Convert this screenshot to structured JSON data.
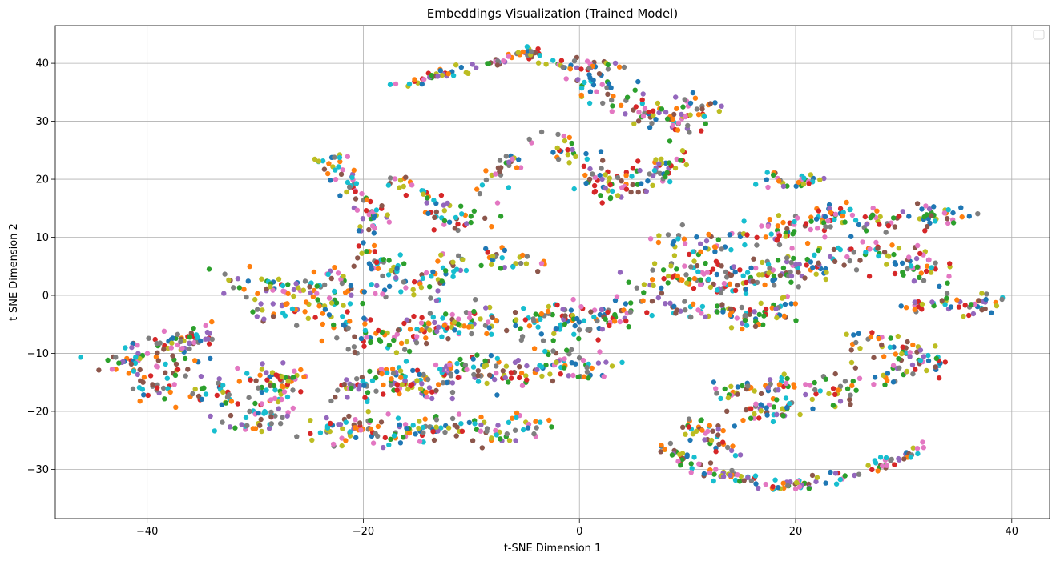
{
  "chart_data": {
    "type": "scatter",
    "title": "Embeddings Visualization (Trained Model)",
    "xlabel": "t-SNE Dimension 1",
    "ylabel": "t-SNE Dimension 2",
    "xlim": [
      -48.5,
      43.5
    ],
    "ylim": [
      -38.5,
      46.5
    ],
    "xticks": [
      -40,
      -20,
      0,
      20,
      40
    ],
    "yticks": [
      -30,
      -20,
      -10,
      0,
      10,
      20,
      30,
      40
    ],
    "grid": true,
    "legend": {
      "placement": "upper-right",
      "entries": []
    },
    "palette": [
      "#1f77b4",
      "#ff7f0e",
      "#2ca02c",
      "#d62728",
      "#9467bd",
      "#8c564b",
      "#e377c2",
      "#7f7f7f",
      "#bcbd22",
      "#17becf"
    ],
    "clusters": [
      {
        "points": [
          [
            -17.5,
            36.2
          ],
          [
            -14.0,
            37.5
          ],
          [
            -11.0,
            38.8
          ],
          [
            -8.0,
            40.2
          ],
          [
            -5.0,
            41.5
          ],
          [
            -3.5,
            42.3
          ]
        ],
        "spread": 0.8,
        "count": 70
      },
      {
        "points": [
          [
            -3.0,
            40.0
          ],
          [
            0.0,
            39.5
          ],
          [
            3.0,
            40.0
          ]
        ],
        "spread": 1.0,
        "count": 30
      },
      {
        "points": [
          [
            0.0,
            38.0
          ],
          [
            3.0,
            34.0
          ],
          [
            6.0,
            32.0
          ],
          [
            9.0,
            30.0
          ],
          [
            12.0,
            33.0
          ]
        ],
        "spread": 2.2,
        "count": 110
      },
      {
        "points": [
          [
            -3.0,
            28.0
          ],
          [
            0.0,
            22.0
          ],
          [
            3.0,
            18.0
          ],
          [
            6.0,
            20.0
          ],
          [
            9.0,
            24.0
          ]
        ],
        "spread": 2.2,
        "count": 110
      },
      {
        "points": [
          [
            -23.0,
            24.0
          ],
          [
            -22.0,
            20.0
          ],
          [
            -21.0,
            18.0
          ],
          [
            -19.0,
            14.0
          ],
          [
            -20.0,
            10.0
          ]
        ],
        "spread": 1.5,
        "count": 70
      },
      {
        "points": [
          [
            -17.0,
            20.0
          ],
          [
            -15.0,
            18.0
          ],
          [
            -13.0,
            15.0
          ],
          [
            -11.0,
            12.0
          ]
        ],
        "spread": 1.7,
        "count": 50
      },
      {
        "points": [
          [
            -10.0,
            16.0
          ],
          [
            -8.0,
            21.0
          ],
          [
            -6.0,
            23.5
          ],
          [
            -9.0,
            11.0
          ]
        ],
        "spread": 1.3,
        "count": 30
      },
      {
        "points": [
          [
            -20.0,
            8.0
          ],
          [
            -18.0,
            4.0
          ],
          [
            -15.0,
            0.5
          ],
          [
            -12.0,
            5.0
          ],
          [
            -8.0,
            7.0
          ],
          [
            -4.0,
            5.0
          ]
        ],
        "spread": 2.0,
        "count": 110
      },
      {
        "points": [
          [
            -32.0,
            2.0
          ],
          [
            -28.0,
            1.0
          ],
          [
            -24.0,
            3.0
          ],
          [
            -20.0,
            0.0
          ],
          [
            -26.0,
            -3.0
          ],
          [
            -30.0,
            -2.0
          ]
        ],
        "spread": 2.2,
        "count": 120
      },
      {
        "points": [
          [
            -43.0,
            -12.0
          ],
          [
            -40.0,
            -10.0
          ],
          [
            -37.0,
            -8.0
          ],
          [
            -34.0,
            -6.0
          ],
          [
            -38.0,
            -15.0
          ],
          [
            -41.0,
            -17.0
          ]
        ],
        "spread": 2.0,
        "count": 130
      },
      {
        "points": [
          [
            -35.0,
            -18.0
          ],
          [
            -31.0,
            -15.0
          ],
          [
            -27.0,
            -13.0
          ],
          [
            -28.0,
            -20.0
          ],
          [
            -32.0,
            -22.0
          ]
        ],
        "spread": 2.2,
        "count": 130
      },
      {
        "points": [
          [
            -22.0,
            -5.0
          ],
          [
            -18.0,
            -8.0
          ],
          [
            -14.0,
            -6.0
          ],
          [
            -10.0,
            -4.0
          ],
          [
            -6.0,
            -6.0
          ],
          [
            -2.0,
            -3.0
          ],
          [
            2.0,
            -5.0
          ],
          [
            5.0,
            -2.0
          ]
        ],
        "spread": 2.4,
        "count": 230
      },
      {
        "points": [
          [
            -22.0,
            -17.0
          ],
          [
            -18.0,
            -14.0
          ],
          [
            -14.0,
            -16.0
          ],
          [
            -10.0,
            -12.0
          ],
          [
            -6.0,
            -14.0
          ],
          [
            -2.0,
            -11.0
          ],
          [
            2.0,
            -13.0
          ]
        ],
        "spread": 2.4,
        "count": 230
      },
      {
        "points": [
          [
            -24.0,
            -24.0
          ],
          [
            -20.0,
            -22.0
          ],
          [
            -16.0,
            -24.0
          ],
          [
            -12.0,
            -22.0
          ],
          [
            -8.0,
            -24.0
          ],
          [
            -4.0,
            -21.0
          ]
        ],
        "spread": 2.2,
        "count": 150
      },
      {
        "points": [
          [
            6.0,
            2.0
          ],
          [
            10.0,
            4.0
          ],
          [
            14.0,
            2.0
          ],
          [
            18.0,
            4.0
          ],
          [
            22.0,
            6.0
          ],
          [
            26.0,
            8.0
          ],
          [
            30.0,
            6.0
          ],
          [
            34.0,
            4.0
          ]
        ],
        "spread": 2.4,
        "count": 230
      },
      {
        "points": [
          [
            8.0,
            -3.0
          ],
          [
            12.0,
            -2.0
          ],
          [
            16.0,
            -4.0
          ],
          [
            20.0,
            -2.0
          ]
        ],
        "spread": 1.8,
        "count": 80
      },
      {
        "points": [
          [
            8.0,
            10.0
          ],
          [
            12.0,
            8.0
          ],
          [
            16.0,
            10.0
          ],
          [
            20.0,
            12.0
          ],
          [
            24.0,
            14.0
          ],
          [
            28.0,
            13.0
          ],
          [
            32.0,
            14.0
          ],
          [
            35.0,
            14.0
          ]
        ],
        "spread": 2.0,
        "count": 170
      },
      {
        "points": [
          [
            17.0,
            20.5
          ],
          [
            20.0,
            20.0
          ],
          [
            22.0,
            19.5
          ],
          [
            16.0,
            19.0
          ]
        ],
        "spread": 1.0,
        "count": 30
      },
      {
        "points": [
          [
            30.0,
            -2.0
          ],
          [
            33.0,
            -1.0
          ],
          [
            36.0,
            -2.0
          ],
          [
            38.5,
            -0.8
          ]
        ],
        "spread": 1.3,
        "count": 50
      },
      {
        "points": [
          [
            26.0,
            -8.0
          ],
          [
            29.0,
            -9.0
          ],
          [
            31.0,
            -10.0
          ],
          [
            33.0,
            -12.0
          ],
          [
            30.0,
            -13.0
          ],
          [
            26.0,
            -15.0
          ]
        ],
        "spread": 1.8,
        "count": 80
      },
      {
        "points": [
          [
            13.0,
            -17.0
          ],
          [
            17.0,
            -16.0
          ],
          [
            21.0,
            -15.0
          ],
          [
            25.0,
            -17.0
          ],
          [
            15.0,
            -20.0
          ],
          [
            19.0,
            -20.0
          ]
        ],
        "spread": 1.8,
        "count": 110
      },
      {
        "points": [
          [
            8.0,
            -26.0
          ],
          [
            10.0,
            -29.0
          ],
          [
            13.0,
            -31.0
          ],
          [
            16.0,
            -32.0
          ],
          [
            19.0,
            -33.0
          ],
          [
            22.0,
            -32.0
          ],
          [
            25.0,
            -31.0
          ],
          [
            28.0,
            -29.0
          ],
          [
            31.0,
            -27.0
          ],
          [
            33.0,
            -25.0
          ]
        ],
        "spread": 1.0,
        "count": 130
      },
      {
        "points": [
          [
            10.0,
            -22.0
          ],
          [
            12.0,
            -24.0
          ],
          [
            14.0,
            -27.0
          ]
        ],
        "spread": 1.5,
        "count": 40
      }
    ]
  }
}
